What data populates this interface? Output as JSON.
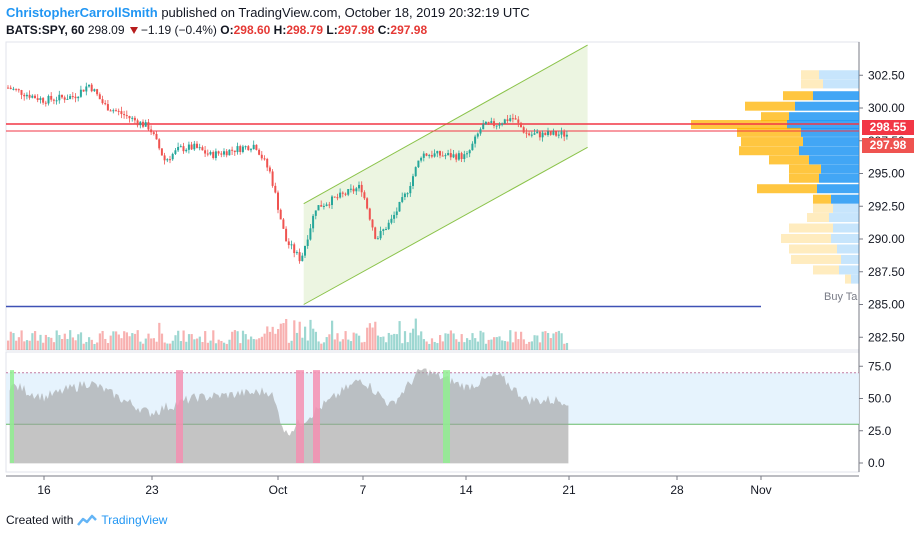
{
  "header": {
    "author": "ChristopherCarrollSmith",
    "published": "published on TradingView.com, October 18, 2019 20:32:19 UTC",
    "symbol": "BATS:SPY, 60",
    "last": "298.09",
    "change": "−1.19 (−0.4%)",
    "o_label": "O:",
    "o_value": "298.60",
    "h_label": "H:",
    "h_value": "298.79",
    "l_label": "L:",
    "l_value": "297.98",
    "c_label": "C:",
    "c_value": "297.98"
  },
  "footer": {
    "created_with": "Created with",
    "brand": "TradingView"
  },
  "price_labels": {
    "last": "298.55",
    "close": "297.98"
  },
  "profile_label": "Buy Ta",
  "colors": {
    "up": "#26a69a",
    "down": "#ef5350",
    "channel": "#8bc34a",
    "profile_up": "#2196f3",
    "profile_down": "#ffb300",
    "hline_red": "#f23645",
    "hline_blue": "#3f51b5",
    "rsi_fill": "#9e9e9e"
  },
  "chart_data": [
    {
      "type": "candlestick",
      "title": "BATS:SPY, 60",
      "x_ticks": [
        "16",
        "23",
        "Oct",
        "7",
        "14",
        "21",
        "28",
        "Nov"
      ],
      "y_ticks": [
        "282.50",
        "285.00",
        "287.50",
        "290.00",
        "292.50",
        "295.00",
        "297.50",
        "300.00",
        "302.50"
      ],
      "ylim": [
        282.0,
        304.0
      ],
      "horizontal_lines": [
        298.55,
        285.0
      ],
      "approx_close_path": [
        {
          "x": "Sep 12",
          "y": 302.1
        },
        {
          "x": "Sep 13",
          "y": 301.8
        },
        {
          "x": "Sep 16",
          "y": 300.6
        },
        {
          "x": "Sep 18",
          "y": 300.9
        },
        {
          "x": "Sep 19",
          "y": 301.8
        },
        {
          "x": "Sep 20",
          "y": 300.2
        },
        {
          "x": "Sep 23",
          "y": 298.5
        },
        {
          "x": "Sep 24",
          "y": 296.0
        },
        {
          "x": "Sep 25",
          "y": 296.9
        },
        {
          "x": "Sep 26",
          "y": 297.0
        },
        {
          "x": "Sep 27",
          "y": 296.4
        },
        {
          "x": "Sep 30",
          "y": 297.2
        },
        {
          "x": "Oct 1",
          "y": 295.0
        },
        {
          "x": "Oct 2",
          "y": 289.9
        },
        {
          "x": "Oct 3",
          "y": 288.4
        },
        {
          "x": "Oct 4",
          "y": 292.4
        },
        {
          "x": "Oct 7",
          "y": 294.0
        },
        {
          "x": "Oct 8",
          "y": 290.0
        },
        {
          "x": "Oct 9",
          "y": 291.4
        },
        {
          "x": "Oct 10",
          "y": 293.5
        },
        {
          "x": "Oct 11",
          "y": 296.5
        },
        {
          "x": "Oct 14",
          "y": 296.3
        },
        {
          "x": "Oct 15",
          "y": 298.6
        },
        {
          "x": "Oct 16",
          "y": 298.8
        },
        {
          "x": "Oct 17",
          "y": 299.3
        },
        {
          "x": "Oct 18",
          "y": 297.98
        }
      ],
      "channel": {
        "lower": [
          {
            "x": "Oct 3",
            "y": 285.0
          },
          {
            "x": "Oct 22",
            "y": 297.0
          }
        ],
        "upper": [
          {
            "x": "Oct 3",
            "y": 292.7
          },
          {
            "x": "Oct 22",
            "y": 304.8
          }
        ]
      }
    },
    {
      "type": "area",
      "y_ticks": [
        "0.0",
        "25.0",
        "50.0",
        "75.0"
      ],
      "ylim": [
        -3,
        80
      ],
      "bands": [
        30,
        70
      ],
      "approx_path": [
        {
          "x": "Sep 12",
          "y": 68
        },
        {
          "x": "Sep 16",
          "y": 50
        },
        {
          "x": "Sep 19",
          "y": 62
        },
        {
          "x": "Sep 23",
          "y": 38
        },
        {
          "x": "Sep 26",
          "y": 50
        },
        {
          "x": "Oct 1",
          "y": 55
        },
        {
          "x": "Oct 2",
          "y": 22
        },
        {
          "x": "Oct 4",
          "y": 40
        },
        {
          "x": "Oct 7",
          "y": 65
        },
        {
          "x": "Oct 9",
          "y": 44
        },
        {
          "x": "Oct 11",
          "y": 72
        },
        {
          "x": "Oct 14",
          "y": 58
        },
        {
          "x": "Oct 16",
          "y": 68
        },
        {
          "x": "Oct 18",
          "y": 48
        }
      ]
    }
  ]
}
